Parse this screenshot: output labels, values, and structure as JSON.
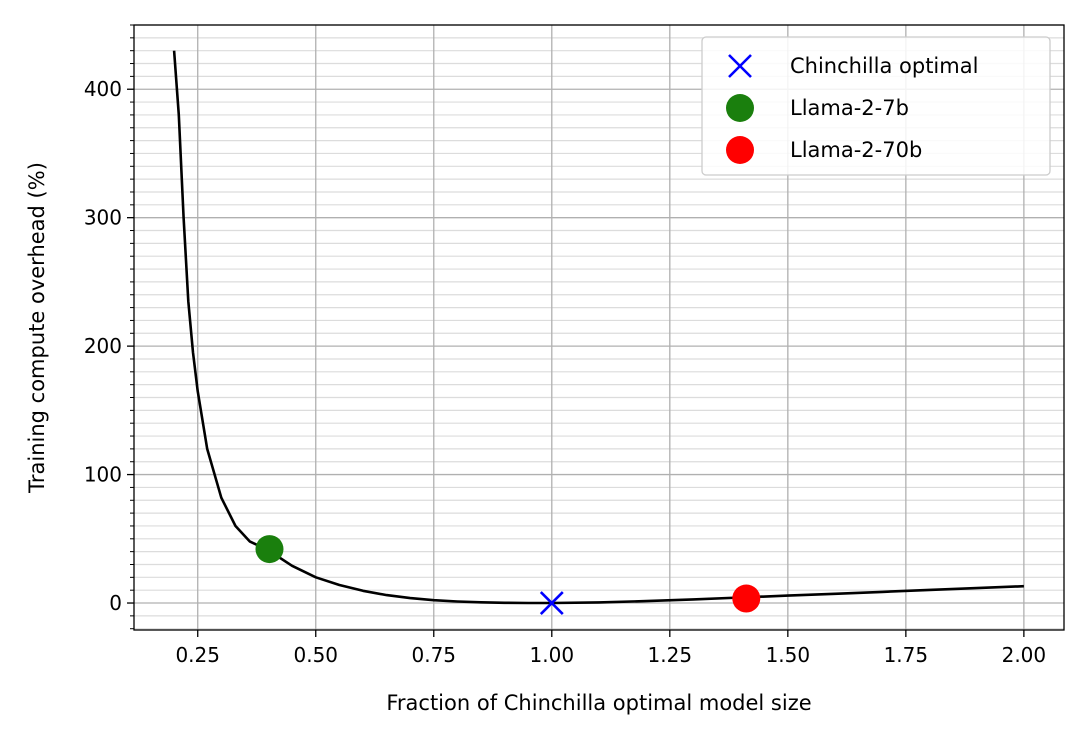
{
  "chart_data": {
    "type": "line",
    "xlabel": "Fraction of Chinchilla optimal model size",
    "ylabel": "Training compute overhead (%)",
    "xlim": [
      0.115,
      2.085
    ],
    "ylim": [
      -21,
      450
    ],
    "x_ticks": [
      0.25,
      0.5,
      0.75,
      1.0,
      1.25,
      1.5,
      1.75,
      2.0
    ],
    "x_tick_labels": [
      "0.25",
      "0.50",
      "0.75",
      "1.00",
      "1.25",
      "1.50",
      "1.75",
      "2.00"
    ],
    "y_ticks": [
      0,
      100,
      200,
      300,
      400
    ],
    "y_tick_labels": [
      "0",
      "100",
      "200",
      "300",
      "400"
    ],
    "y_minor_step": 10,
    "grid": "major and minor",
    "legend_position": "top-right",
    "curve": {
      "color": "#000000",
      "x": [
        0.2,
        0.21,
        0.22,
        0.23,
        0.24,
        0.25,
        0.27,
        0.3,
        0.33,
        0.36,
        0.4,
        0.45,
        0.5,
        0.55,
        0.6,
        0.65,
        0.7,
        0.75,
        0.8,
        0.85,
        0.9,
        0.95,
        1.0,
        1.1,
        1.2,
        1.3,
        1.4,
        1.5,
        1.6,
        1.7,
        1.8,
        1.9,
        2.0
      ],
      "y": [
        430,
        380,
        300,
        235,
        195,
        165,
        120,
        82,
        60,
        48,
        41,
        29,
        20,
        14,
        9.5,
        6.2,
        3.8,
        2.2,
        1.2,
        0.6,
        0.2,
        0.05,
        0,
        0.5,
        1.5,
        2.8,
        4.3,
        5.8,
        7.2,
        8.7,
        10.2,
        11.6,
        13.1
      ]
    },
    "points": [
      {
        "name": "Chinchilla optimal",
        "x": 1.0,
        "y": 0,
        "marker": "x",
        "color": "#0000ff"
      },
      {
        "name": "Llama-2-7b",
        "x": 0.402,
        "y": 42,
        "marker": "circle",
        "color": "#1a7f0d"
      },
      {
        "name": "Llama-2-70b",
        "x": 1.412,
        "y": 3.5,
        "marker": "circle",
        "color": "#ff0000"
      }
    ]
  }
}
